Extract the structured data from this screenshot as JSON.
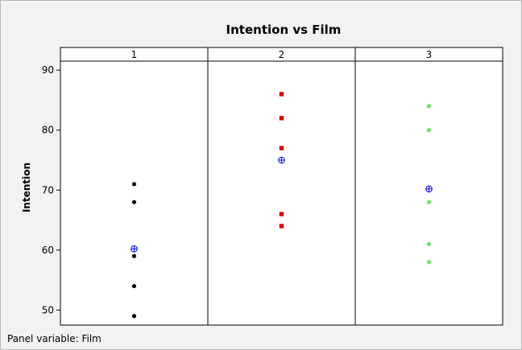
{
  "chart_data": {
    "type": "scatter",
    "title": "Intention vs Film",
    "ylabel": "Intention",
    "ylim": [
      47.5,
      91.5
    ],
    "yticks": [
      50,
      60,
      70,
      80,
      90
    ],
    "panel_variable": "Film",
    "footnote": "Panel variable: Film",
    "panels": [
      {
        "label": "1",
        "values": [
          49,
          54,
          59,
          68,
          71
        ],
        "mean": 60.2,
        "color": "#000000",
        "marker": "circle"
      },
      {
        "label": "2",
        "values": [
          64,
          66,
          77,
          82,
          86
        ],
        "mean": 75.0,
        "color": "#e00000",
        "marker": "square"
      },
      {
        "label": "3",
        "values": [
          58,
          61,
          68,
          80,
          84
        ],
        "mean": 70.2,
        "color": "#66e066",
        "marker": "diamond"
      }
    ],
    "mean_marker_color": "#0000ff"
  }
}
